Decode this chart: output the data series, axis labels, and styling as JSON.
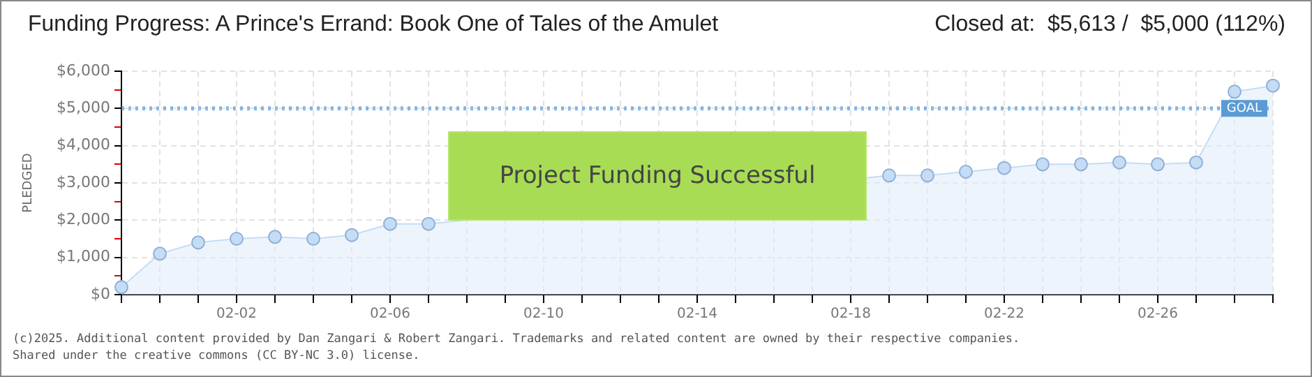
{
  "chart_data": {
    "type": "area",
    "title": "Funding Progress: A Prince's Errand: Book One of Tales of the Amulet",
    "subtitle": "Closed at:  $5,613 /  $5,000 (112%)",
    "ylabel": "PLEDGED",
    "categories": [
      null,
      null,
      null,
      "02-02",
      null,
      null,
      null,
      "02-06",
      null,
      null,
      null,
      "02-10",
      null,
      null,
      null,
      "02-14",
      null,
      null,
      null,
      "02-18",
      null,
      null,
      null,
      "02-22",
      null,
      null,
      null,
      "02-26",
      null,
      null,
      null
    ],
    "series": [
      {
        "color": "#c5dcf5",
        "values": [
          200,
          1100,
          1400,
          1500,
          1550,
          1500,
          1600,
          1900,
          1900,
          null,
          null,
          null,
          null,
          null,
          null,
          null,
          null,
          null,
          null,
          null,
          3200,
          3200,
          3300,
          3400,
          3500,
          3500,
          3550,
          3500,
          3550,
          5450,
          5613
        ]
      }
    ],
    "ylim": [
      0,
      6000
    ],
    "yticks": [
      {
        "value": 0,
        "label": "$0"
      },
      {
        "value": 500,
        "label": null
      },
      {
        "value": 1000,
        "label": "$1,000"
      },
      {
        "value": 1500,
        "label": null
      },
      {
        "value": 2000,
        "label": "$2,000"
      },
      {
        "value": 2500,
        "label": null
      },
      {
        "value": 3000,
        "label": "$3,000"
      },
      {
        "value": 3500,
        "label": null
      },
      {
        "value": 4000,
        "label": "$4,000"
      },
      {
        "value": 4500,
        "label": null
      },
      {
        "value": 5000,
        "label": "$5,000"
      },
      {
        "value": 5500,
        "label": null
      },
      {
        "value": 6000,
        "label": "$6,000"
      }
    ],
    "ref_lines": [
      {
        "axis": "y",
        "value": 5000,
        "label": "GOAL",
        "color": "#5b9bd5",
        "line_style": "dotted"
      }
    ],
    "annotations": [
      "Project Funding Successful",
      "(c)2025. Additional content provided by Dan Zangari & Robert Zangari. Trademarks and related content are owned by their respective companies.",
      "Shared under the creative commons (CC BY-NC 3.0) license."
    ],
    "grid": true,
    "marker": "circle",
    "legend": false
  }
}
